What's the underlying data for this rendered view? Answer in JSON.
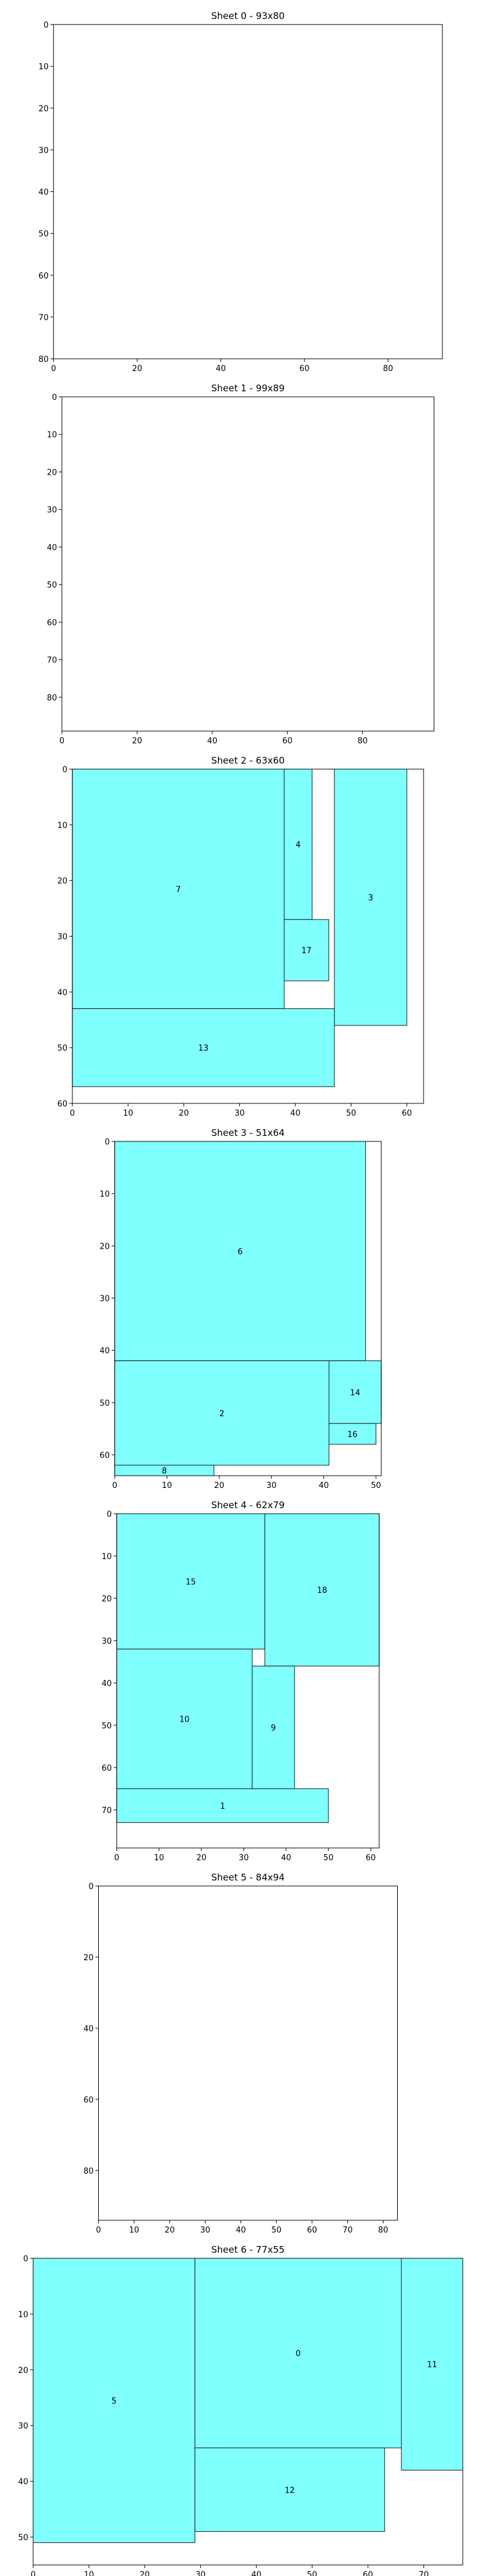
{
  "chart_data": [
    {
      "type": "rectangles",
      "title": "Sheet 0 - 93x80",
      "width": 93,
      "height": 80,
      "xlim": [
        0,
        93
      ],
      "ylim": [
        80,
        0
      ],
      "xticks": [
        0,
        20,
        40,
        60,
        80
      ],
      "yticks": [
        0,
        10,
        20,
        30,
        40,
        50,
        60,
        70,
        80
      ],
      "rects": []
    },
    {
      "type": "rectangles",
      "title": "Sheet 1 - 99x89",
      "width": 99,
      "height": 89,
      "xlim": [
        0,
        99
      ],
      "ylim": [
        89,
        0
      ],
      "xticks": [
        0,
        20,
        40,
        60,
        80
      ],
      "yticks": [
        0,
        10,
        20,
        30,
        40,
        50,
        60,
        70,
        80
      ],
      "rects": []
    },
    {
      "type": "rectangles",
      "title": "Sheet 2 - 63x60",
      "width": 63,
      "height": 60,
      "xlim": [
        0,
        63
      ],
      "ylim": [
        60,
        0
      ],
      "xticks": [
        0,
        10,
        20,
        30,
        40,
        50,
        60
      ],
      "yticks": [
        0,
        10,
        20,
        30,
        40,
        50,
        60
      ],
      "rects": [
        {
          "label": "7",
          "x": 0,
          "y": 0,
          "w": 38,
          "h": 43
        },
        {
          "label": "4",
          "x": 38,
          "y": 0,
          "w": 5,
          "h": 27
        },
        {
          "label": "17",
          "x": 38,
          "y": 27,
          "w": 8,
          "h": 11
        },
        {
          "label": "3",
          "x": 47,
          "y": 0,
          "w": 13,
          "h": 46
        },
        {
          "label": "13",
          "x": 0,
          "y": 43,
          "w": 47,
          "h": 14
        }
      ]
    },
    {
      "type": "rectangles",
      "title": "Sheet 3 - 51x64",
      "width": 51,
      "height": 64,
      "xlim": [
        0,
        51
      ],
      "ylim": [
        64,
        0
      ],
      "xticks": [
        0,
        10,
        20,
        30,
        40,
        50
      ],
      "yticks": [
        0,
        10,
        20,
        30,
        40,
        50,
        60
      ],
      "rects": [
        {
          "label": "6",
          "x": 0,
          "y": 0,
          "w": 48,
          "h": 42
        },
        {
          "label": "2",
          "x": 0,
          "y": 42,
          "w": 41,
          "h": 20
        },
        {
          "label": "14",
          "x": 41,
          "y": 42,
          "w": 10,
          "h": 12
        },
        {
          "label": "16",
          "x": 41,
          "y": 54,
          "w": 9,
          "h": 4
        },
        {
          "label": "8",
          "x": 0,
          "y": 62,
          "w": 19,
          "h": 2
        }
      ]
    },
    {
      "type": "rectangles",
      "title": "Sheet 4 - 62x79",
      "width": 62,
      "height": 79,
      "xlim": [
        0,
        62
      ],
      "ylim": [
        79,
        0
      ],
      "xticks": [
        0,
        10,
        20,
        30,
        40,
        50,
        60
      ],
      "yticks": [
        0,
        10,
        20,
        30,
        40,
        50,
        60,
        70
      ],
      "rects": [
        {
          "label": "15",
          "x": 0,
          "y": 0,
          "w": 35,
          "h": 32
        },
        {
          "label": "18",
          "x": 35,
          "y": 0,
          "w": 27,
          "h": 36
        },
        {
          "label": "10",
          "x": 0,
          "y": 32,
          "w": 32,
          "h": 33
        },
        {
          "label": "9",
          "x": 32,
          "y": 36,
          "w": 10,
          "h": 29
        },
        {
          "label": "1",
          "x": 0,
          "y": 65,
          "w": 50,
          "h": 8
        }
      ]
    },
    {
      "type": "rectangles",
      "title": "Sheet 5 - 84x94",
      "width": 84,
      "height": 94,
      "xlim": [
        0,
        84
      ],
      "ylim": [
        94,
        0
      ],
      "xticks": [
        0,
        10,
        20,
        30,
        40,
        50,
        60,
        70,
        80
      ],
      "yticks": [
        0,
        20,
        40,
        60,
        80
      ],
      "rects": []
    },
    {
      "type": "rectangles",
      "title": "Sheet 6 - 77x55",
      "width": 77,
      "height": 55,
      "xlim": [
        0,
        77
      ],
      "ylim": [
        55,
        0
      ],
      "xticks": [
        0,
        10,
        20,
        30,
        40,
        50,
        60,
        70
      ],
      "yticks": [
        0,
        10,
        20,
        30,
        40,
        50
      ],
      "rects": [
        {
          "label": "5",
          "x": 0,
          "y": 0,
          "w": 29,
          "h": 51
        },
        {
          "label": "0",
          "x": 29,
          "y": 0,
          "w": 37,
          "h": 34
        },
        {
          "label": "11",
          "x": 66,
          "y": 0,
          "w": 11,
          "h": 38
        },
        {
          "label": "12",
          "x": 29,
          "y": 34,
          "w": 34,
          "h": 15
        }
      ]
    }
  ],
  "colors": {
    "fill": "#80ffff",
    "edge": "#1a1a1a",
    "axis": "#000000"
  }
}
